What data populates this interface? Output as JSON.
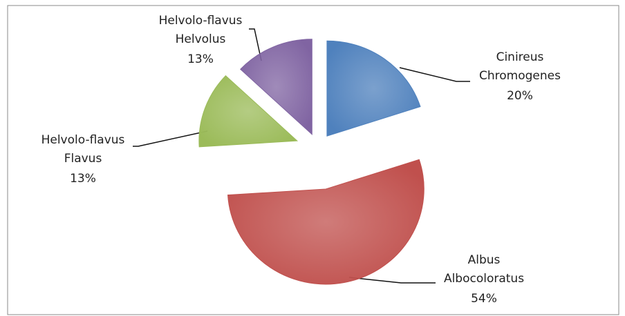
{
  "chart_data": {
    "type": "pie",
    "categories": [
      "Cinireus Chromogenes",
      "Albus Albocoloratus",
      "Helvolo-flavus Flavus",
      "Helvolo-flavus Helvolus"
    ],
    "values": [
      20,
      54,
      13,
      13
    ],
    "value_labels": [
      "20%",
      "54%",
      "13%",
      "13%"
    ],
    "colors": [
      "#4f81bd",
      "#c0504d",
      "#9bbb59",
      "#8064a2"
    ]
  }
}
